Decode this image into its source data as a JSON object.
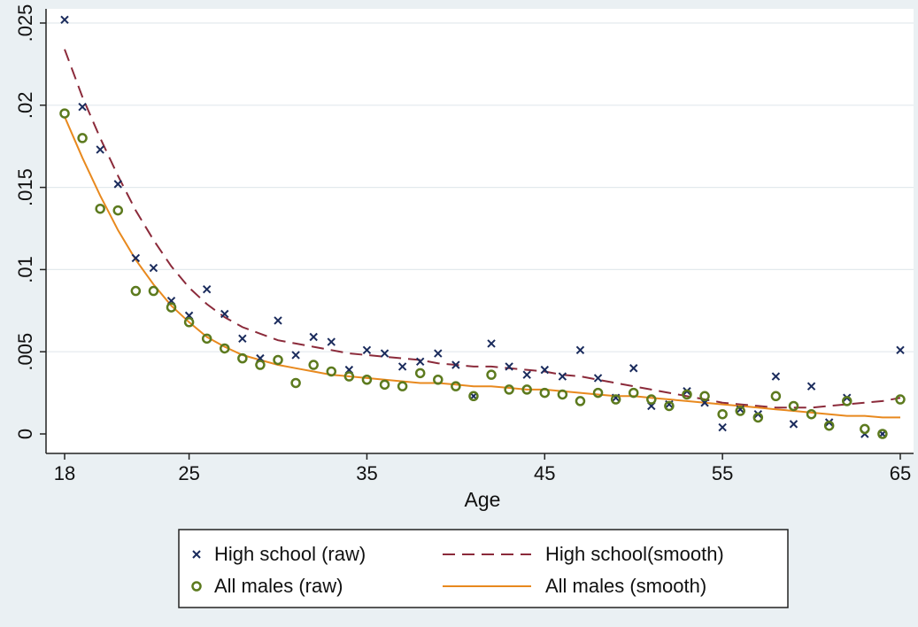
{
  "chart_data": {
    "type": "scatter",
    "title": "",
    "xlabel": "Age",
    "ylabel": "",
    "xlim": [
      18,
      65
    ],
    "ylim": [
      0,
      0.025
    ],
    "x_ticks": [
      18,
      25,
      35,
      45,
      55,
      65
    ],
    "y_ticks": [
      0,
      0.005,
      0.01,
      0.015,
      0.02,
      0.025
    ],
    "y_tick_labels": [
      "0",
      ".005",
      ".01",
      ".015",
      ".02",
      ".025"
    ],
    "grid": true,
    "legend_position": "bottom",
    "series": [
      {
        "name": "High school (raw)",
        "kind": "markers",
        "marker": "x",
        "color": "#1a2b5c",
        "x": [
          18,
          19,
          20,
          21,
          22,
          23,
          24,
          25,
          26,
          27,
          28,
          29,
          30,
          31,
          32,
          33,
          34,
          35,
          36,
          37,
          38,
          39,
          40,
          41,
          42,
          43,
          44,
          45,
          46,
          47,
          48,
          49,
          50,
          51,
          52,
          53,
          54,
          55,
          56,
          57,
          58,
          59,
          60,
          61,
          62,
          63,
          64,
          65
        ],
        "y": [
          0.0252,
          0.0199,
          0.0173,
          0.0152,
          0.0107,
          0.0101,
          0.0081,
          0.0072,
          0.0088,
          0.0073,
          0.0058,
          0.0046,
          0.0069,
          0.0048,
          0.0059,
          0.0056,
          0.0039,
          0.0051,
          0.0049,
          0.0041,
          0.0044,
          0.0049,
          0.0042,
          0.0023,
          0.0055,
          0.0041,
          0.0036,
          0.0039,
          0.0035,
          0.0051,
          0.0034,
          0.0022,
          0.004,
          0.0017,
          0.0018,
          0.0026,
          0.0019,
          0.0004,
          0.0015,
          0.0012,
          0.0035,
          0.0006,
          0.0029,
          0.0007,
          0.0022,
          0.0,
          0.0,
          0.0051
        ]
      },
      {
        "name": "All males (raw)",
        "kind": "markers",
        "marker": "circle",
        "color": "#5c7a1e",
        "x": [
          18,
          19,
          20,
          21,
          22,
          23,
          24,
          25,
          26,
          27,
          28,
          29,
          30,
          31,
          32,
          33,
          34,
          35,
          36,
          37,
          38,
          39,
          40,
          41,
          42,
          43,
          44,
          45,
          46,
          47,
          48,
          49,
          50,
          51,
          52,
          53,
          54,
          55,
          56,
          57,
          58,
          59,
          60,
          61,
          62,
          63,
          64,
          65
        ],
        "y": [
          0.0195,
          0.018,
          0.0137,
          0.0136,
          0.0087,
          0.0087,
          0.0077,
          0.0068,
          0.0058,
          0.0052,
          0.0046,
          0.0042,
          0.0045,
          0.0031,
          0.0042,
          0.0038,
          0.0035,
          0.0033,
          0.003,
          0.0029,
          0.0037,
          0.0033,
          0.0029,
          0.0023,
          0.0036,
          0.0027,
          0.0027,
          0.0025,
          0.0024,
          0.002,
          0.0025,
          0.0021,
          0.0025,
          0.0021,
          0.0017,
          0.0024,
          0.0023,
          0.0012,
          0.0014,
          0.001,
          0.0023,
          0.0017,
          0.0012,
          0.0005,
          0.002,
          0.0003,
          0.0,
          0.0021
        ]
      },
      {
        "name": "High school(smooth)",
        "kind": "line",
        "style": "dashed",
        "color": "#8b2a3a",
        "x": [
          18,
          19,
          20,
          21,
          22,
          23,
          24,
          25,
          26,
          27,
          28,
          29,
          30,
          31,
          32,
          33,
          34,
          35,
          36,
          37,
          38,
          39,
          40,
          41,
          42,
          43,
          44,
          45,
          46,
          47,
          48,
          49,
          50,
          51,
          52,
          53,
          54,
          55,
          56,
          57,
          58,
          59,
          60,
          61,
          62,
          63,
          64,
          65
        ],
        "y": [
          0.0234,
          0.0205,
          0.018,
          0.0157,
          0.0136,
          0.0118,
          0.0102,
          0.0089,
          0.0079,
          0.0071,
          0.0065,
          0.0061,
          0.0057,
          0.0055,
          0.0053,
          0.0051,
          0.0049,
          0.0048,
          0.0047,
          0.0046,
          0.0045,
          0.0043,
          0.0042,
          0.0041,
          0.0041,
          0.004,
          0.0039,
          0.0038,
          0.0036,
          0.0035,
          0.0033,
          0.0031,
          0.0029,
          0.0027,
          0.0025,
          0.0023,
          0.0021,
          0.0019,
          0.0018,
          0.0017,
          0.0016,
          0.0016,
          0.0016,
          0.0017,
          0.0018,
          0.0019,
          0.002,
          0.0022
        ]
      },
      {
        "name": "All males (smooth)",
        "kind": "line",
        "style": "solid",
        "color": "#e8891e",
        "x": [
          18,
          19,
          20,
          21,
          22,
          23,
          24,
          25,
          26,
          27,
          28,
          29,
          30,
          31,
          32,
          33,
          34,
          35,
          36,
          37,
          38,
          39,
          40,
          41,
          42,
          43,
          44,
          45,
          46,
          47,
          48,
          49,
          50,
          51,
          52,
          53,
          54,
          55,
          56,
          57,
          58,
          59,
          60,
          61,
          62,
          63,
          64,
          65
        ],
        "y": [
          0.0193,
          0.0168,
          0.0145,
          0.0124,
          0.0106,
          0.0091,
          0.0078,
          0.0068,
          0.0059,
          0.0053,
          0.0048,
          0.0045,
          0.0042,
          0.004,
          0.0038,
          0.0036,
          0.0035,
          0.0034,
          0.0033,
          0.0032,
          0.0031,
          0.0031,
          0.003,
          0.0029,
          0.0029,
          0.0028,
          0.0027,
          0.0027,
          0.0026,
          0.0025,
          0.0024,
          0.0023,
          0.0023,
          0.0022,
          0.0021,
          0.002,
          0.0019,
          0.0018,
          0.0017,
          0.0016,
          0.0015,
          0.0014,
          0.0013,
          0.0012,
          0.0011,
          0.0011,
          0.001,
          0.001
        ]
      }
    ],
    "legend": {
      "items": [
        {
          "label": "High school (raw)",
          "series": 0
        },
        {
          "label": "High school(smooth)",
          "series": 2
        },
        {
          "label": "All males (raw)",
          "series": 1
        },
        {
          "label": "All males (smooth)",
          "series": 3
        }
      ]
    },
    "colors": {
      "background": "#eaf0f3",
      "plot_background": "#ffffff",
      "grid": "#e3e9ed",
      "axis": "#222222"
    }
  }
}
